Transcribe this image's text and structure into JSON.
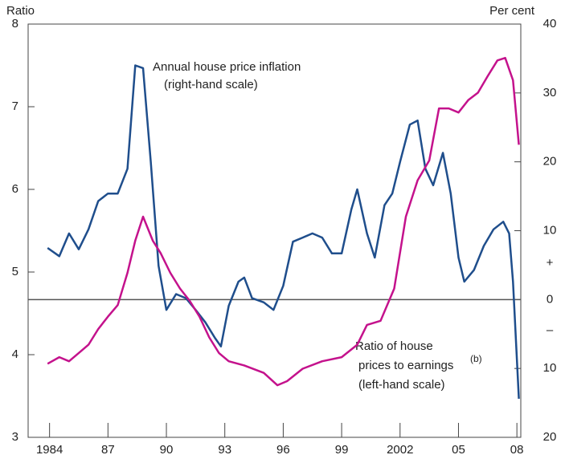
{
  "chart_data": {
    "type": "line",
    "y_label": "Ratio",
    "y2_label": "Per cent",
    "annotations": {
      "inflation_1": "Annual house price inflation",
      "inflation_2": "(right-hand scale)",
      "ratio_1": "Ratio of house",
      "ratio_2": "prices to earnings",
      "ratio_note": "(b)",
      "ratio_3": "(left-hand scale)",
      "plus": "+",
      "minus": "–"
    },
    "xlim": [
      1982.9,
      2008.2
    ],
    "xticks": [
      {
        "value": 1984,
        "label": "1984"
      },
      {
        "value": 1987,
        "label": "87"
      },
      {
        "value": 1990,
        "label": "90"
      },
      {
        "value": 1993,
        "label": "93"
      },
      {
        "value": 1996,
        "label": "96"
      },
      {
        "value": 1999,
        "label": "99"
      },
      {
        "value": 2002,
        "label": "2002"
      },
      {
        "value": 2005,
        "label": "05"
      },
      {
        "value": 2008,
        "label": "08"
      }
    ],
    "ylim": [
      3,
      8
    ],
    "yticks": [
      3,
      4,
      5,
      6,
      7,
      8
    ],
    "y2lim": [
      -20,
      40
    ],
    "y2ticks": [
      {
        "value": -20,
        "label": "20"
      },
      {
        "value": -10,
        "label": "10"
      },
      0,
      10,
      20,
      30,
      40
    ],
    "series": [
      {
        "name": "Annual house price inflation",
        "color": "#1f4e8c",
        "axis": "y2",
        "x": [
          1983.9,
          1984.5,
          1985,
          1985.5,
          1986,
          1986.5,
          1987,
          1987.5,
          1988,
          1988.4,
          1988.8,
          1989.2,
          1989.6,
          1990,
          1990.5,
          1991,
          1991.5,
          1992,
          1992.5,
          1992.8,
          1993.2,
          1993.7,
          1994,
          1994.4,
          1995,
          1995.5,
          1996,
          1996.5,
          1997,
          1997.5,
          1998,
          1998.5,
          1999,
          1999.5,
          1999.8,
          2000.3,
          2000.7,
          2001.2,
          2001.6,
          2002,
          2002.5,
          2002.9,
          2003.3,
          2003.7,
          2004.2,
          2004.6,
          2005,
          2005.3,
          2005.8,
          2006.3,
          2006.8,
          2007.3,
          2007.6,
          2007.8,
          2008.1
        ],
        "values": [
          7.5,
          6.3,
          9.6,
          7.3,
          10.2,
          14.3,
          15.4,
          15.4,
          19,
          34,
          33.6,
          20,
          4.9,
          -1.5,
          0.8,
          0.2,
          -1.5,
          -3.3,
          -5.6,
          -6.8,
          -0.9,
          2.6,
          3.2,
          0.2,
          -0.4,
          -1.5,
          2,
          8.4,
          9,
          9.6,
          9,
          6.7,
          6.7,
          13.1,
          16,
          9.6,
          6.1,
          13.7,
          15.4,
          20,
          25.4,
          26,
          19,
          16.6,
          21.3,
          15.4,
          6.1,
          2.6,
          4.3,
          7.8,
          10.2,
          11.3,
          9.6,
          2.6,
          -14.4
        ]
      },
      {
        "name": "Ratio of house prices to earnings",
        "color": "#c4128c",
        "x": [
          1983.9,
          1984.5,
          1985,
          1985.5,
          1986,
          1986.5,
          1987,
          1987.5,
          1988,
          1988.4,
          1988.8,
          1989.3,
          1989.7,
          1990.2,
          1990.7,
          1991.2,
          1991.7,
          1992.2,
          1992.7,
          1993.2,
          1994,
          1995,
          1995.7,
          1996.2,
          1997,
          1998,
          1999,
          1999.8,
          2000.3,
          2001,
          2001.7,
          2002.3,
          2002.9,
          2003.5,
          2004,
          2004.5,
          2005,
          2005.5,
          2006,
          2006.5,
          2007,
          2007.4,
          2007.8,
          2008.1
        ],
        "values": [
          3.89,
          3.97,
          3.92,
          4.02,
          4.12,
          4.31,
          4.46,
          4.6,
          4.99,
          5.38,
          5.67,
          5.38,
          5.23,
          4.99,
          4.8,
          4.65,
          4.46,
          4.21,
          4.02,
          3.92,
          3.87,
          3.78,
          3.63,
          3.68,
          3.83,
          3.92,
          3.97,
          4.12,
          4.36,
          4.41,
          4.8,
          5.67,
          6.11,
          6.35,
          6.98,
          6.98,
          6.93,
          7.08,
          7.17,
          7.37,
          7.56,
          7.59,
          7.32,
          6.54
        ]
      }
    ]
  }
}
